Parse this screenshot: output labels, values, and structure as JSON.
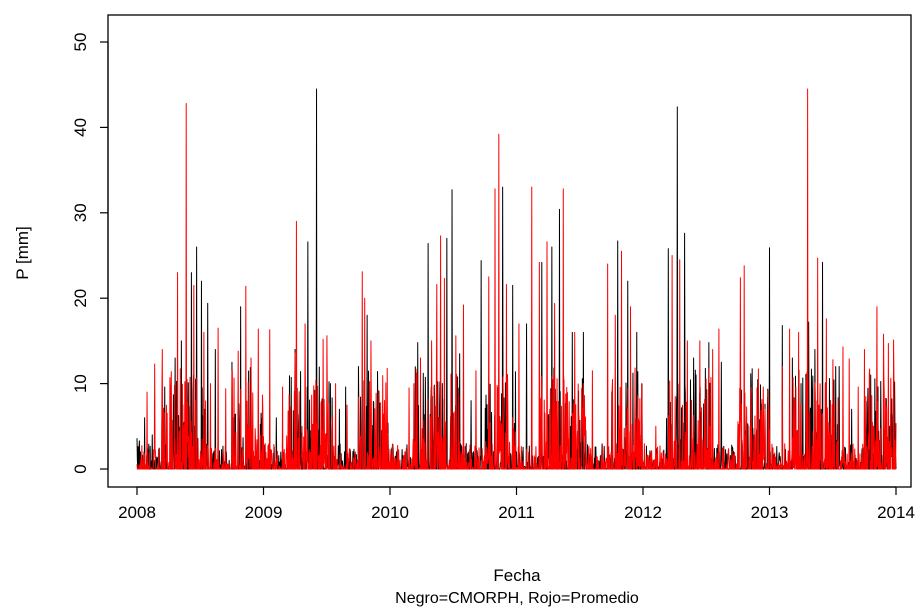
{
  "chart_data": {
    "type": "line",
    "xlabel": "Fecha",
    "caption": "Negro=CMORPH, Rojo=Promedio",
    "ylabel": "P [mm]",
    "xlim": [
      2008,
      2014
    ],
    "ylim": [
      0,
      50
    ],
    "x_ticks": [
      "2008",
      "2009",
      "2010",
      "2011",
      "2012",
      "2013",
      "2014"
    ],
    "y_ticks": [
      "0",
      "10",
      "20",
      "30",
      "40",
      "50"
    ],
    "grid": false,
    "legend": "none",
    "series": [
      {
        "name": "CMORPH",
        "color": "#000000",
        "peaks": [
          {
            "x": 2008.0,
            "y": 3.6
          },
          {
            "x": 2008.02,
            "y": 3.3
          },
          {
            "x": 2008.06,
            "y": 6
          },
          {
            "x": 2008.12,
            "y": 4
          },
          {
            "x": 2008.22,
            "y": 9.6
          },
          {
            "x": 2008.3,
            "y": 13
          },
          {
            "x": 2008.35,
            "y": 15
          },
          {
            "x": 2008.43,
            "y": 23
          },
          {
            "x": 2008.47,
            "y": 26
          },
          {
            "x": 2008.51,
            "y": 22
          },
          {
            "x": 2008.56,
            "y": 19.4
          },
          {
            "x": 2008.62,
            "y": 14
          },
          {
            "x": 2008.75,
            "y": 12.5
          },
          {
            "x": 2008.82,
            "y": 19
          },
          {
            "x": 2009.1,
            "y": 6
          },
          {
            "x": 2009.25,
            "y": 14
          },
          {
            "x": 2009.35,
            "y": 26.6
          },
          {
            "x": 2009.42,
            "y": 44.5
          },
          {
            "x": 2009.53,
            "y": 10
          },
          {
            "x": 2009.6,
            "y": 7
          },
          {
            "x": 2009.65,
            "y": 9.6
          },
          {
            "x": 2009.75,
            "y": 12
          },
          {
            "x": 2009.82,
            "y": 18
          },
          {
            "x": 2010.05,
            "y": 1.5
          },
          {
            "x": 2010.22,
            "y": 14.8
          },
          {
            "x": 2010.3,
            "y": 26.4
          },
          {
            "x": 2010.45,
            "y": 27
          },
          {
            "x": 2010.49,
            "y": 32.7
          },
          {
            "x": 2010.55,
            "y": 13.5
          },
          {
            "x": 2010.64,
            "y": 8
          },
          {
            "x": 2010.72,
            "y": 24.4
          },
          {
            "x": 2010.89,
            "y": 33
          },
          {
            "x": 2010.97,
            "y": 21.5
          },
          {
            "x": 2011.08,
            "y": 17
          },
          {
            "x": 2011.2,
            "y": 24.2
          },
          {
            "x": 2011.28,
            "y": 26
          },
          {
            "x": 2011.34,
            "y": 30.4
          },
          {
            "x": 2011.44,
            "y": 16
          },
          {
            "x": 2011.53,
            "y": 16
          },
          {
            "x": 2011.8,
            "y": 26.7
          },
          {
            "x": 2011.88,
            "y": 22
          },
          {
            "x": 2011.95,
            "y": 16
          },
          {
            "x": 2012.2,
            "y": 25.8
          },
          {
            "x": 2012.27,
            "y": 42.4
          },
          {
            "x": 2012.33,
            "y": 27.6
          },
          {
            "x": 2012.4,
            "y": 13
          },
          {
            "x": 2012.52,
            "y": 14.8
          },
          {
            "x": 2012.62,
            "y": 12.5
          },
          {
            "x": 2012.75,
            "y": 5
          },
          {
            "x": 2012.85,
            "y": 2
          },
          {
            "x": 2013.0,
            "y": 25.9
          },
          {
            "x": 2013.1,
            "y": 16.8
          },
          {
            "x": 2013.18,
            "y": 13
          },
          {
            "x": 2013.25,
            "y": 10
          },
          {
            "x": 2013.31,
            "y": 17.2
          },
          {
            "x": 2013.36,
            "y": 14
          },
          {
            "x": 2013.42,
            "y": 24.2
          },
          {
            "x": 2013.55,
            "y": 12
          },
          {
            "x": 2013.65,
            "y": 7
          },
          {
            "x": 2013.8,
            "y": 11
          },
          {
            "x": 2013.95,
            "y": 5
          }
        ]
      },
      {
        "name": "Promedio",
        "color": "#ff0000",
        "peaks": [
          {
            "x": 2008.08,
            "y": 9
          },
          {
            "x": 2008.14,
            "y": 12.3
          },
          {
            "x": 2008.2,
            "y": 14
          },
          {
            "x": 2008.26,
            "y": 10.7
          },
          {
            "x": 2008.32,
            "y": 23
          },
          {
            "x": 2008.39,
            "y": 42.8
          },
          {
            "x": 2008.45,
            "y": 21.5
          },
          {
            "x": 2008.53,
            "y": 16
          },
          {
            "x": 2008.58,
            "y": 10
          },
          {
            "x": 2008.64,
            "y": 16.5
          },
          {
            "x": 2008.7,
            "y": 9.4
          },
          {
            "x": 2008.8,
            "y": 13.8
          },
          {
            "x": 2008.86,
            "y": 21.4
          },
          {
            "x": 2008.9,
            "y": 13
          },
          {
            "x": 2008.96,
            "y": 16.4
          },
          {
            "x": 2009.05,
            "y": 16.3
          },
          {
            "x": 2009.15,
            "y": 9.6
          },
          {
            "x": 2009.25,
            "y": 13.6
          },
          {
            "x": 2009.26,
            "y": 29
          },
          {
            "x": 2009.33,
            "y": 17
          },
          {
            "x": 2009.47,
            "y": 15.2
          },
          {
            "x": 2009.5,
            "y": 15.6
          },
          {
            "x": 2009.57,
            "y": 10
          },
          {
            "x": 2009.66,
            "y": 7.5
          },
          {
            "x": 2009.78,
            "y": 23.1
          },
          {
            "x": 2009.8,
            "y": 20
          },
          {
            "x": 2009.85,
            "y": 15
          },
          {
            "x": 2009.92,
            "y": 2.6
          },
          {
            "x": 2010.15,
            "y": 9.5
          },
          {
            "x": 2010.19,
            "y": 10
          },
          {
            "x": 2010.24,
            "y": 13
          },
          {
            "x": 2010.33,
            "y": 15
          },
          {
            "x": 2010.37,
            "y": 21.6
          },
          {
            "x": 2010.4,
            "y": 27.3
          },
          {
            "x": 2010.43,
            "y": 22.3
          },
          {
            "x": 2010.52,
            "y": 15.6
          },
          {
            "x": 2010.58,
            "y": 19.2
          },
          {
            "x": 2010.68,
            "y": 11.5
          },
          {
            "x": 2010.78,
            "y": 22.5
          },
          {
            "x": 2010.83,
            "y": 32.8
          },
          {
            "x": 2010.86,
            "y": 39.2
          },
          {
            "x": 2010.92,
            "y": 21.6
          },
          {
            "x": 2011.02,
            "y": 17
          },
          {
            "x": 2011.12,
            "y": 33
          },
          {
            "x": 2011.18,
            "y": 24.2
          },
          {
            "x": 2011.24,
            "y": 26.6
          },
          {
            "x": 2011.3,
            "y": 19.4
          },
          {
            "x": 2011.37,
            "y": 32.8
          },
          {
            "x": 2011.46,
            "y": 16
          },
          {
            "x": 2011.6,
            "y": 11.5
          },
          {
            "x": 2011.72,
            "y": 24
          },
          {
            "x": 2011.78,
            "y": 18
          },
          {
            "x": 2011.83,
            "y": 25.5
          },
          {
            "x": 2011.9,
            "y": 19
          },
          {
            "x": 2011.99,
            "y": 10
          },
          {
            "x": 2012.1,
            "y": 5
          },
          {
            "x": 2012.23,
            "y": 25
          },
          {
            "x": 2012.29,
            "y": 24.5
          },
          {
            "x": 2012.35,
            "y": 15
          },
          {
            "x": 2012.45,
            "y": 15
          },
          {
            "x": 2012.55,
            "y": 14
          },
          {
            "x": 2012.6,
            "y": 16.4
          },
          {
            "x": 2012.77,
            "y": 22.4
          },
          {
            "x": 2012.8,
            "y": 23.8
          },
          {
            "x": 2012.9,
            "y": 9.5
          },
          {
            "x": 2012.95,
            "y": 9.6
          },
          {
            "x": 2013.1,
            "y": 12
          },
          {
            "x": 2013.16,
            "y": 16.4
          },
          {
            "x": 2013.23,
            "y": 16
          },
          {
            "x": 2013.3,
            "y": 44.5
          },
          {
            "x": 2013.38,
            "y": 24.7
          },
          {
            "x": 2013.45,
            "y": 17.6
          },
          {
            "x": 2013.5,
            "y": 12.8
          },
          {
            "x": 2013.58,
            "y": 14.3
          },
          {
            "x": 2013.63,
            "y": 12.9
          },
          {
            "x": 2013.7,
            "y": 9.6
          },
          {
            "x": 2013.75,
            "y": 14
          },
          {
            "x": 2013.85,
            "y": 19
          },
          {
            "x": 2013.9,
            "y": 15.8
          },
          {
            "x": 2013.94,
            "y": 14.7
          },
          {
            "x": 2013.98,
            "y": 15.1
          }
        ]
      }
    ]
  }
}
